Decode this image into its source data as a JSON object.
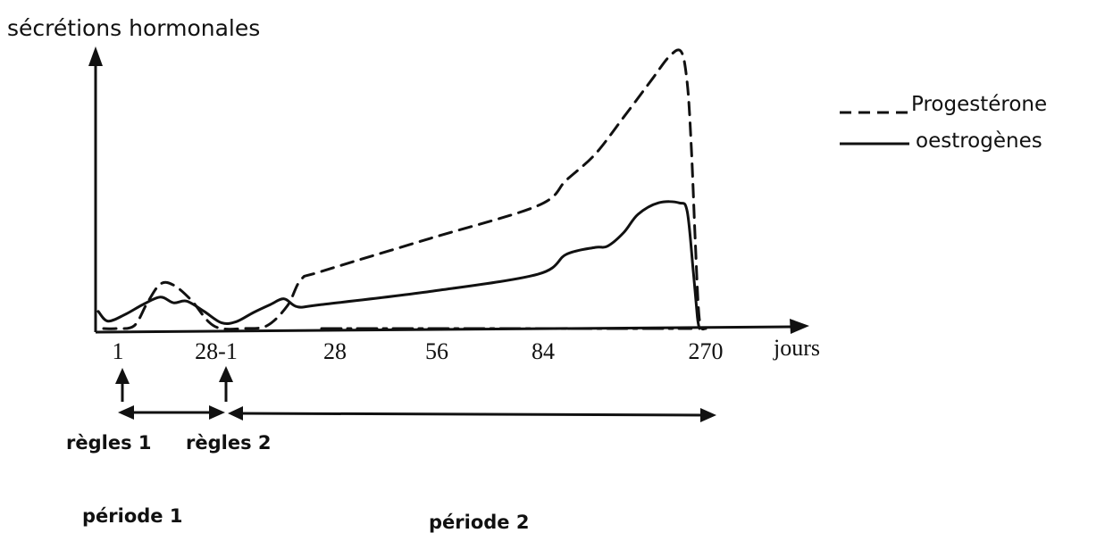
{
  "chart_data": {
    "type": "line",
    "ylabel": "sécrétions hormonales",
    "xlabel": "jours",
    "x_tick_labels": [
      "1",
      "28-1",
      "28",
      "56",
      "84",
      "270"
    ],
    "legend": {
      "placement": "top-right",
      "entries": [
        {
          "name": "Progestérone",
          "style": "dashed"
        },
        {
          "name": "oestrogènes",
          "style": "solid"
        }
      ]
    },
    "series": [
      {
        "name": "Progestérone",
        "style": "dashed",
        "points": [
          [
            0,
            0.0
          ],
          [
            3,
            0.0
          ],
          [
            7,
            0.05
          ],
          [
            10,
            0.45
          ],
          [
            13,
            0.78
          ],
          [
            16,
            0.76
          ],
          [
            20,
            0.5
          ],
          [
            24,
            0.12
          ],
          [
            27,
            0.0
          ],
          [
            33,
            0.0
          ],
          [
            40,
            0.05
          ],
          [
            46,
            0.4
          ],
          [
            50,
            0.86
          ],
          [
            56,
            1.0
          ],
          [
            84,
            1.58
          ],
          [
            112,
            2.15
          ],
          [
            140,
            2.6
          ],
          [
            168,
            3.05
          ],
          [
            196,
            3.7
          ],
          [
            224,
            4.37
          ],
          [
            240,
            4.75
          ],
          [
            252,
            4.85
          ],
          [
            258,
            4.3
          ],
          [
            262,
            3.2
          ],
          [
            266,
            1.5
          ],
          [
            270,
            0.15
          ],
          [
            272,
            0.0
          ]
        ]
      },
      {
        "name": "oestrogènes",
        "style": "solid",
        "points": [
          [
            -2,
            0.3
          ],
          [
            1,
            0.13
          ],
          [
            5,
            0.25
          ],
          [
            9,
            0.42
          ],
          [
            13,
            0.55
          ],
          [
            16,
            0.45
          ],
          [
            19,
            0.48
          ],
          [
            23,
            0.3
          ],
          [
            27,
            0.1
          ],
          [
            31,
            0.12
          ],
          [
            36,
            0.28
          ],
          [
            41,
            0.42
          ],
          [
            45,
            0.52
          ],
          [
            49,
            0.38
          ],
          [
            56,
            0.42
          ],
          [
            84,
            0.65
          ],
          [
            112,
            0.95
          ],
          [
            140,
            1.3
          ],
          [
            168,
            1.42
          ],
          [
            180,
            1.44
          ],
          [
            196,
            1.68
          ],
          [
            210,
            2.0
          ],
          [
            230,
            2.2
          ],
          [
            250,
            2.2
          ],
          [
            258,
            2.05
          ],
          [
            264,
            1.0
          ],
          [
            268,
            0.2
          ],
          [
            270,
            0.0
          ]
        ]
      },
      {
        "name": "",
        "style": "dash-dot",
        "points": [
          [
            56,
            0.0
          ],
          [
            200,
            0.0
          ],
          [
            262,
            0.0
          ]
        ]
      }
    ],
    "grid": false
  },
  "annotations": {
    "regles_1": "règles 1",
    "regles_2": "règles 2",
    "periode_1": "période 1",
    "periode_2": "période 2"
  }
}
